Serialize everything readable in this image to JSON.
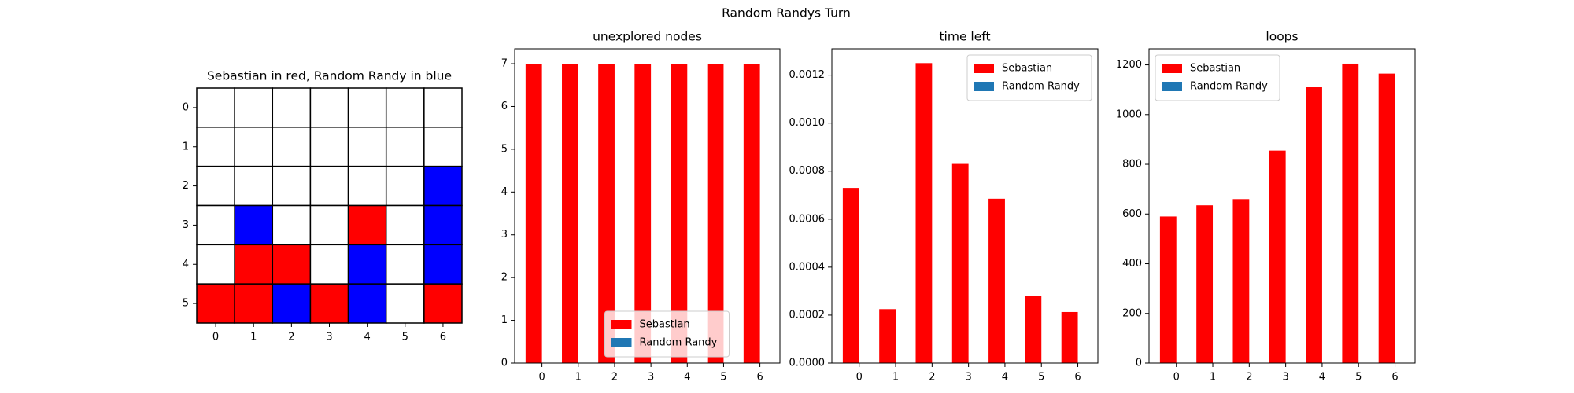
{
  "title": "Random Randys Turn",
  "chart_data": [
    {
      "type": "grid",
      "title": "Sebastian in red, Random Randy in blue",
      "xticks": [
        0,
        1,
        2,
        3,
        4,
        5,
        6
      ],
      "yticks": [
        0,
        1,
        2,
        3,
        4,
        5
      ],
      "cells": [
        [
          "#ffffff",
          "#ffffff",
          "#ffffff",
          "#ffffff",
          "#ffffff",
          "#ffffff",
          "#ffffff"
        ],
        [
          "#ffffff",
          "#ffffff",
          "#ffffff",
          "#ffffff",
          "#ffffff",
          "#ffffff",
          "#ffffff"
        ],
        [
          "#ffffff",
          "#ffffff",
          "#ffffff",
          "#ffffff",
          "#ffffff",
          "#ffffff",
          "#0000ff"
        ],
        [
          "#ffffff",
          "#0000ff",
          "#ffffff",
          "#ffffff",
          "#ff0000",
          "#ffffff",
          "#0000ff"
        ],
        [
          "#ffffff",
          "#ff0000",
          "#ff0000",
          "#ffffff",
          "#0000ff",
          "#ffffff",
          "#0000ff"
        ],
        [
          "#ff0000",
          "#ff0000",
          "#0000ff",
          "#ff0000",
          "#0000ff",
          "#ffffff",
          "#ff0000"
        ]
      ]
    },
    {
      "type": "bar",
      "title": "unexplored nodes",
      "categories": [
        0,
        1,
        2,
        3,
        4,
        5,
        6
      ],
      "series": [
        {
          "name": "Sebastian",
          "color": "#ff0000",
          "values": [
            7,
            7,
            7,
            7,
            7,
            7,
            7
          ]
        },
        {
          "name": "Random Randy",
          "color": "#1f77b4",
          "values": [
            0,
            0,
            0,
            0,
            0,
            0,
            0
          ]
        }
      ],
      "ylim": [
        0,
        7.35
      ],
      "yticks": [
        0,
        1,
        2,
        3,
        4,
        5,
        6,
        7
      ],
      "legend": "lower center"
    },
    {
      "type": "bar",
      "title": "time left",
      "categories": [
        0,
        1,
        2,
        3,
        4,
        5,
        6
      ],
      "series": [
        {
          "name": "Sebastian",
          "color": "#ff0000",
          "values": [
            0.00073,
            0.000225,
            0.00125,
            0.00083,
            0.000685,
            0.00028,
            0.000213
          ]
        },
        {
          "name": "Random Randy",
          "color": "#1f77b4",
          "values": [
            0,
            0,
            0,
            0,
            0,
            0,
            0
          ]
        }
      ],
      "ylim": [
        0,
        0.00131
      ],
      "yticks": [
        {
          "value": 0,
          "label": "0.0000"
        },
        {
          "value": 0.0002,
          "label": "0.0002"
        },
        {
          "value": 0.0004,
          "label": "0.0004"
        },
        {
          "value": 0.0006,
          "label": "0.0006"
        },
        {
          "value": 0.0008,
          "label": "0.0008"
        },
        {
          "value": 0.001,
          "label": "0.0010"
        },
        {
          "value": 0.0012,
          "label": "0.0012"
        }
      ],
      "legend": "upper right"
    },
    {
      "type": "bar",
      "title": "loops",
      "categories": [
        0,
        1,
        2,
        3,
        4,
        5,
        6
      ],
      "series": [
        {
          "name": "Sebastian",
          "color": "#ff0000",
          "values": [
            590,
            635,
            660,
            855,
            1110,
            1205,
            1165
          ]
        },
        {
          "name": "Random Randy",
          "color": "#1f77b4",
          "values": [
            0,
            0,
            0,
            0,
            0,
            0,
            0
          ]
        }
      ],
      "ylim": [
        0,
        1265
      ],
      "yticks": [
        0,
        200,
        400,
        600,
        800,
        1000,
        1200
      ],
      "legend": "upper left"
    }
  ]
}
